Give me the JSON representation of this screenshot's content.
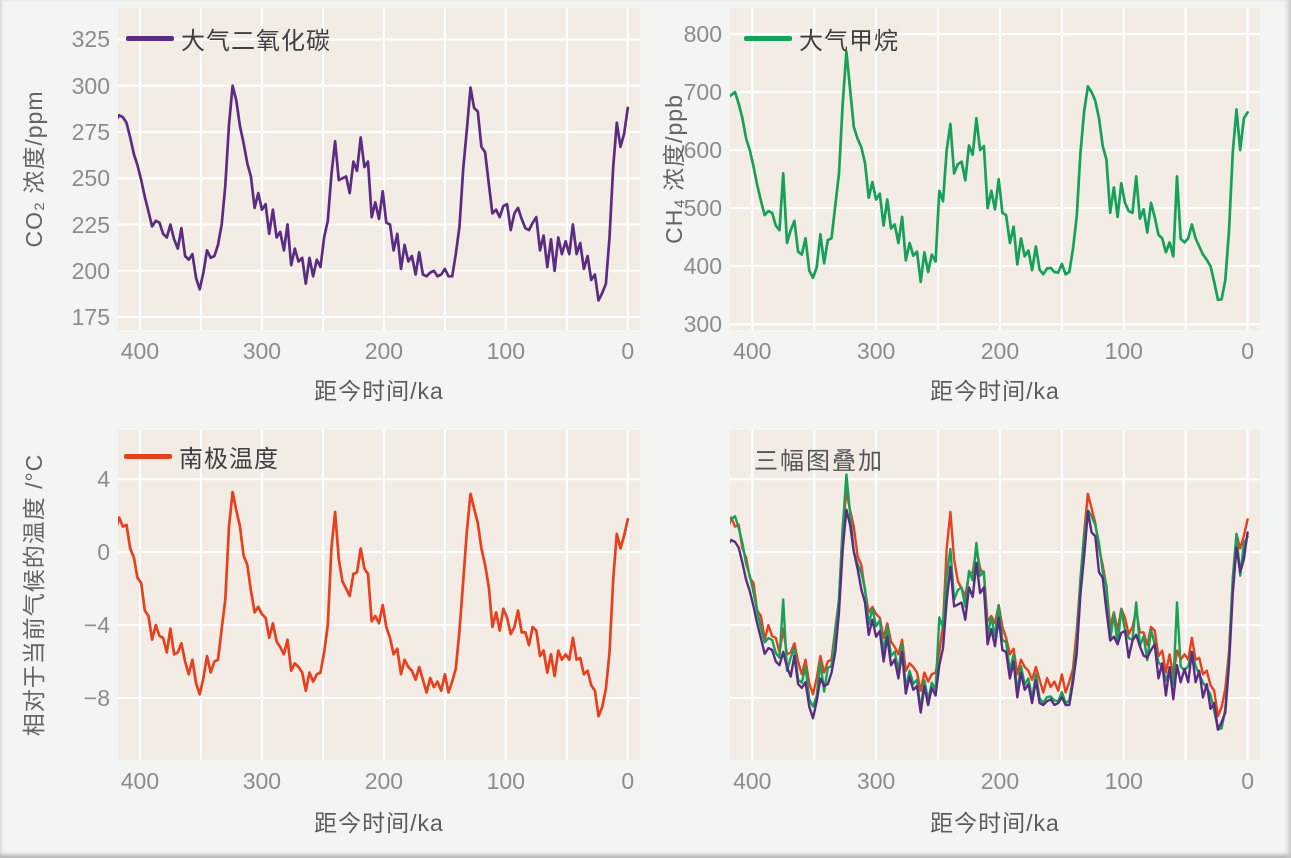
{
  "figure": {
    "xlabel": "距今时间/ka",
    "xlim": [
      418,
      -10
    ],
    "x_ticks": [
      400,
      300,
      200,
      100,
      0
    ],
    "x_grid": [
      400,
      350,
      300,
      250,
      200,
      150,
      100,
      50,
      0
    ],
    "colors": {
      "co2": "#5a2d82",
      "ch4": "#16a05a",
      "temp": "#e8401f",
      "plot_bg": "#f3ece5",
      "grid": "#ffffff",
      "page_bg": "#f3f5f2",
      "tick_text": "#8a8d8a",
      "axis_label_text": "#646464",
      "legend_text": "#3f3f3f"
    },
    "panels": [
      {
        "id": "co2",
        "legend": "大气二氧化碳",
        "ylabel": "CO₂ 浓度/ppm",
        "yticks": [
          325,
          300,
          275,
          250,
          225,
          200,
          175
        ],
        "ylim": [
          168,
          342
        ],
        "series": [
          "co2"
        ]
      },
      {
        "id": "ch4",
        "legend": "大气甲烷",
        "ylabel": "CH₄ 浓度/ppb",
        "yticks": [
          800,
          700,
          600,
          500,
          400,
          300
        ],
        "ylim": [
          290,
          845
        ],
        "series": [
          "ch4"
        ]
      },
      {
        "id": "temp",
        "legend": "南极温度",
        "ylabel": "相对于当前气候的温度 /°C",
        "yticks": [
          4,
          0,
          -4,
          -8
        ],
        "ylim": [
          -11.4,
          6.7
        ],
        "series": [
          "temp"
        ]
      },
      {
        "id": "overlay",
        "legend": "三幅图叠加",
        "ylabel": "",
        "yticks": [],
        "ylim": [
          0,
          1
        ],
        "series": [
          "temp",
          "ch4",
          "co2"
        ]
      }
    ]
  },
  "chart_data": {
    "type": "line",
    "title": "",
    "xlabel": "距今时间/ka",
    "x_axis_reversed": true,
    "x_range": [
      420,
      0
    ],
    "grid": true,
    "legend_position": "upper-left-inside",
    "x": [
      420,
      417,
      414,
      411,
      408,
      405,
      402,
      399,
      396,
      393,
      390,
      387,
      384,
      381,
      378,
      375,
      372,
      369,
      366,
      363,
      360,
      357,
      354,
      351,
      348,
      345,
      342,
      339,
      336,
      333,
      330,
      327,
      324,
      321,
      318,
      315,
      312,
      309,
      306,
      303,
      300,
      297,
      294,
      291,
      288,
      285,
      282,
      279,
      276,
      273,
      270,
      267,
      264,
      261,
      258,
      255,
      252,
      249,
      246,
      243,
      240,
      237,
      234,
      231,
      228,
      225,
      222,
      219,
      216,
      213,
      210,
      207,
      204,
      201,
      198,
      195,
      192,
      189,
      186,
      183,
      180,
      177,
      174,
      171,
      168,
      165,
      162,
      159,
      156,
      153,
      150,
      147,
      144,
      141,
      138,
      135,
      132,
      129,
      126,
      123,
      120,
      117,
      114,
      111,
      108,
      105,
      102,
      99,
      96,
      93,
      90,
      87,
      84,
      81,
      78,
      75,
      72,
      69,
      66,
      63,
      60,
      57,
      54,
      51,
      48,
      45,
      42,
      39,
      36,
      33,
      30,
      27,
      24,
      21,
      18,
      15,
      12,
      9,
      6,
      3,
      0
    ],
    "series": [
      {
        "name": "大气二氧化碳",
        "key": "co2",
        "unit": "ppm",
        "color": "#5a2d82",
        "values": [
          281,
          284,
          283,
          280,
          272,
          263,
          257,
          249,
          240,
          232,
          224,
          227,
          226,
          220,
          218,
          225,
          217,
          212,
          223,
          208,
          206,
          209,
          196,
          190,
          199,
          211,
          207,
          208,
          214,
          225,
          246,
          279,
          300,
          292,
          278,
          269,
          258,
          251,
          234,
          242,
          233,
          236,
          220,
          233,
          218,
          221,
          211,
          225,
          203,
          212,
          205,
          207,
          193,
          207,
          197,
          206,
          202,
          218,
          227,
          252,
          270,
          249,
          250,
          251,
          242,
          259,
          254,
          272,
          256,
          259,
          229,
          237,
          228,
          243,
          226,
          225,
          211,
          220,
          201,
          214,
          205,
          208,
          198,
          210,
          198,
          197,
          199,
          200,
          197,
          198,
          201,
          197,
          197,
          209,
          224,
          255,
          276,
          299,
          288,
          286,
          267,
          264,
          247,
          231,
          233,
          229,
          235,
          236,
          222,
          231,
          234,
          228,
          223,
          222,
          226,
          229,
          211,
          219,
          202,
          217,
          200,
          218,
          209,
          216,
          209,
          225,
          209,
          215,
          201,
          208,
          195,
          198,
          184,
          188,
          193,
          218,
          256,
          280,
          267,
          274,
          288
        ]
      },
      {
        "name": "大气甲烷",
        "key": "ch4",
        "unit": "ppb",
        "color": "#16a05a",
        "values": [
          690,
          695,
          700,
          680,
          655,
          620,
          600,
          572,
          540,
          512,
          488,
          495,
          492,
          470,
          462,
          560,
          440,
          462,
          478,
          425,
          420,
          448,
          392,
          380,
          398,
          455,
          405,
          445,
          448,
          505,
          560,
          680,
          770,
          705,
          640,
          620,
          605,
          578,
          518,
          545,
          515,
          525,
          470,
          515,
          465,
          472,
          440,
          485,
          410,
          440,
          418,
          425,
          373,
          424,
          390,
          420,
          408,
          530,
          512,
          600,
          645,
          560,
          576,
          580,
          548,
          608,
          592,
          655,
          600,
          607,
          500,
          530,
          498,
          550,
          492,
          488,
          440,
          468,
          403,
          448,
          417,
          427,
          393,
          434,
          394,
          386,
          396,
          397,
          390,
          389,
          404,
          386,
          390,
          430,
          485,
          594,
          668,
          710,
          700,
          685,
          655,
          607,
          584,
          492,
          536,
          485,
          543,
          509,
          495,
          492,
          555,
          482,
          498,
          458,
          509,
          485,
          454,
          448,
          424,
          441,
          417,
          555,
          447,
          441,
          448,
          472,
          448,
          434,
          420,
          411,
          400,
          373,
          342,
          343,
          376,
          461,
          597,
          670,
          600,
          655,
          665
        ]
      },
      {
        "name": "南极温度",
        "key": "temp",
        "unit": "°C",
        "color": "#e8401f",
        "values": [
          1.2,
          1.9,
          1.4,
          1.5,
          0.2,
          -0.3,
          -1.4,
          -1.7,
          -3.2,
          -3.5,
          -4.8,
          -4.0,
          -4.6,
          -4.7,
          -5.5,
          -4.2,
          -5.6,
          -5.5,
          -5.0,
          -6.0,
          -6.7,
          -5.9,
          -7.2,
          -7.8,
          -6.9,
          -5.7,
          -6.6,
          -6.0,
          -5.9,
          -4.2,
          -2.6,
          1.4,
          3.3,
          2.3,
          1.4,
          -0.2,
          -0.7,
          -2.1,
          -3.3,
          -3.0,
          -3.4,
          -3.6,
          -4.7,
          -3.9,
          -4.9,
          -5.2,
          -5.6,
          -4.8,
          -6.5,
          -6.1,
          -6.3,
          -6.6,
          -7.6,
          -6.6,
          -7.1,
          -6.7,
          -6.6,
          -5.5,
          -4.0,
          0.2,
          2.2,
          -0.4,
          -1.6,
          -2.0,
          -2.4,
          -1.2,
          -1.1,
          0.2,
          -0.9,
          -1.2,
          -3.8,
          -3.5,
          -3.9,
          -2.9,
          -4.1,
          -4.7,
          -5.6,
          -5.3,
          -6.7,
          -5.9,
          -6.3,
          -6.5,
          -7.0,
          -6.3,
          -7.0,
          -7.7,
          -6.9,
          -7.4,
          -7.1,
          -7.6,
          -6.7,
          -7.7,
          -7.1,
          -6.4,
          -4.3,
          -1.6,
          1.1,
          3.2,
          2.4,
          1.6,
          0.2,
          -0.7,
          -1.9,
          -4.1,
          -3.3,
          -4.3,
          -3.1,
          -3.6,
          -4.5,
          -4.1,
          -3.2,
          -4.4,
          -4.4,
          -5.1,
          -4.1,
          -4.3,
          -5.7,
          -5.4,
          -6.6,
          -5.6,
          -6.8,
          -5.4,
          -5.9,
          -5.6,
          -5.9,
          -4.7,
          -5.9,
          -5.8,
          -6.7,
          -6.5,
          -7.3,
          -7.6,
          -9.0,
          -8.5,
          -7.5,
          -5.5,
          -1.5,
          1.0,
          0.2,
          0.9,
          1.8
        ]
      }
    ]
  }
}
